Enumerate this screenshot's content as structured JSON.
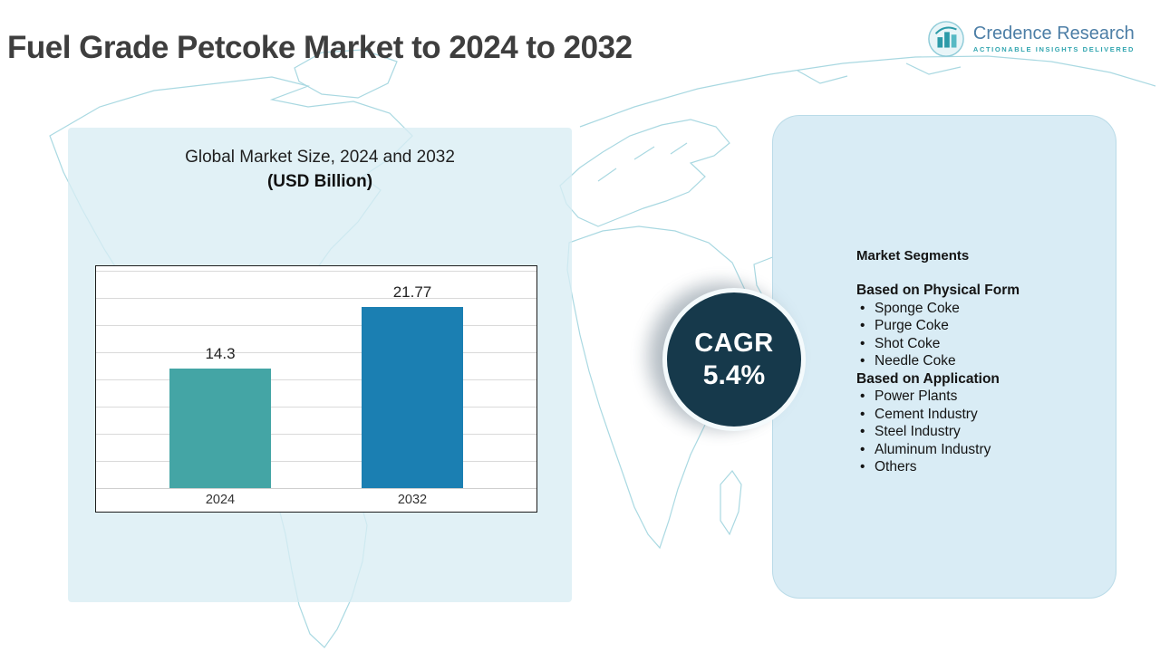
{
  "page": {
    "title": "Fuel Grade Petcoke Market to 2024 to 2032"
  },
  "brand": {
    "name": "Credence Research",
    "tagline": "Actionable Insights Delivered"
  },
  "chart_data": {
    "type": "bar",
    "title": "Global Market Size, 2024 and 2032",
    "subtitle": "(USD Billion)",
    "categories": [
      "2024",
      "2032"
    ],
    "values": [
      14.3,
      21.77
    ],
    "xlabel": "",
    "ylabel": "",
    "ylim": [
      0,
      25
    ],
    "grid": true,
    "legend": "none",
    "bar_colors": [
      "#44a5a5",
      "#1b7fb2"
    ]
  },
  "cagr": {
    "label": "CAGR",
    "value": "5.4%"
  },
  "segments": {
    "heading": "Market Segments",
    "groups": [
      {
        "heading": "Based on Physical Form",
        "items": [
          "Sponge Coke",
          "Purge Coke",
          "Shot Coke",
          "Needle Coke"
        ]
      },
      {
        "heading": "Based on Application",
        "items": [
          "Power Plants",
          "Cement Industry",
          "Steel Industry",
          "Aluminum Industry",
          "Others"
        ]
      }
    ]
  },
  "colors": {
    "bar_2024": "#44a5a5",
    "bar_2032": "#1b7fb2",
    "cagr_circle": "#16394b",
    "panel_background": "#d9ecf5",
    "brand_blue": "#4c7ea6",
    "brand_teal": "#33a6b0",
    "map_line": "#7cc4d2"
  }
}
